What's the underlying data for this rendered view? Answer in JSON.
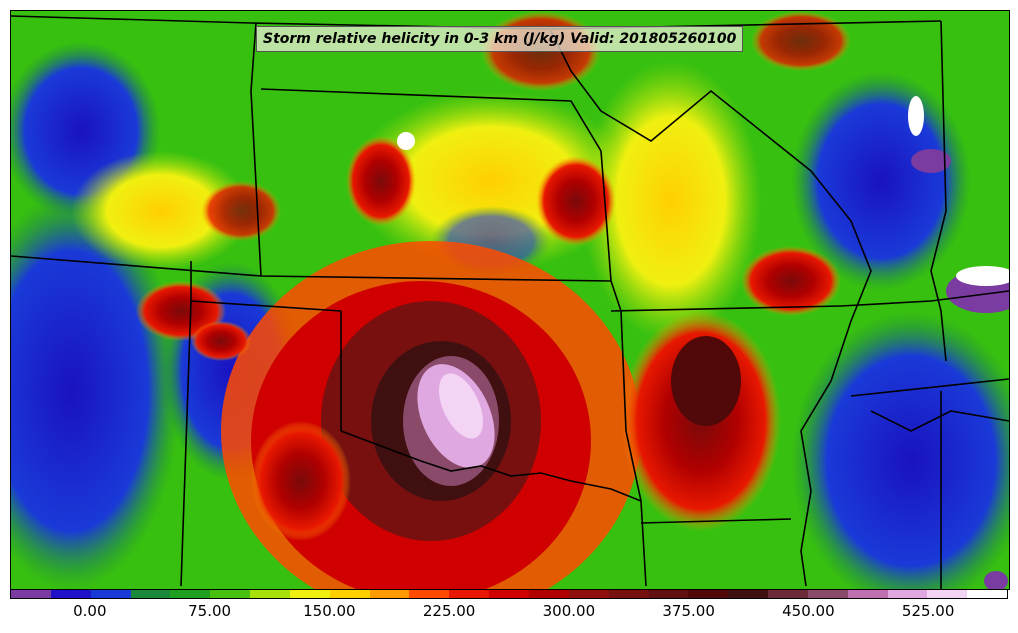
{
  "title": "Storm relative helicity in 0-3 km (J/kg) Valid: 201805260100",
  "colorbar": {
    "tick_labels": [
      "0.00",
      "75.00",
      "150.00",
      "225.00",
      "300.00",
      "375.00",
      "450.00",
      "525.00"
    ],
    "tick_values": [
      0,
      75,
      150,
      225,
      300,
      375,
      450,
      525
    ],
    "range": [
      -50,
      575
    ],
    "bin_colors": [
      "#7a3ca0",
      "#1f12c8",
      "#1a3ad8",
      "#1a8a3a",
      "#1fa020",
      "#48c010",
      "#a8e00a",
      "#f0f010",
      "#ffd000",
      "#ff9a00",
      "#ff4a00",
      "#e81800",
      "#d00000",
      "#b00000",
      "#901010",
      "#781010",
      "#601010",
      "#500808",
      "#401010",
      "#6a2a3a",
      "#8a4a6a",
      "#c070b0",
      "#e0a8e0",
      "#f4d4f4",
      "#ffffff"
    ]
  },
  "map": {
    "projection": "lambert-conformal",
    "features": [
      "state-boundaries",
      "helicity-contours"
    ]
  }
}
